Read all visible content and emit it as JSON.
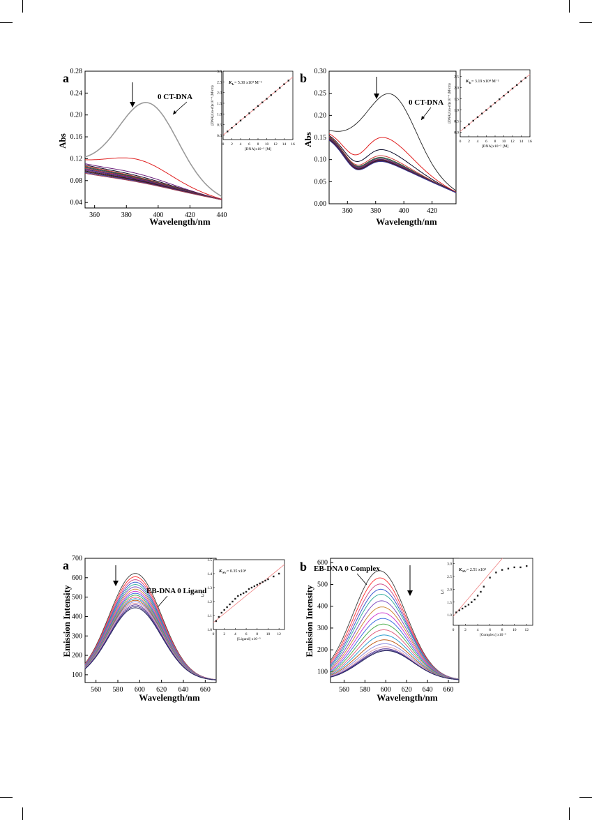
{
  "panels": {
    "a_abs": {
      "letter": "a",
      "xlabel": "Wavelength/nm",
      "ylabel": "Abs",
      "xticks": [
        "360",
        "380",
        "400",
        "420",
        "440"
      ],
      "yticks": [
        "0.04",
        "0.08",
        "0.12",
        "0.16",
        "0.20",
        "0.24",
        "0.28"
      ],
      "annotation": "0 CT-DNA",
      "inset": {
        "kb": "K",
        "kb_sub": "b",
        "kb_value": " = 5.30 x10⁴ M⁻¹",
        "xlabel": "[DNA]x10⁻⁵ [M]",
        "ylabel": "[DNA]/(εa-εf)x10⁻⁹ (M²cm)",
        "xticks": [
          "0",
          "2",
          "4",
          "6",
          "8",
          "10",
          "12",
          "14",
          "16"
        ],
        "yticks": [
          "0.0",
          "0.5",
          "1.0",
          "1.5",
          "2.0",
          "2.5",
          "3.0"
        ]
      }
    },
    "b_abs": {
      "letter": "b",
      "xlabel": "Wavelength/nm",
      "ylabel": "Abs",
      "xticks": [
        "360",
        "380",
        "400",
        "420"
      ],
      "yticks": [
        "0.00",
        "0.05",
        "0.10",
        "0.15",
        "0.20",
        "0.25",
        "0.30"
      ],
      "annotation": "0 CT-DNA",
      "inset": {
        "kb": "K",
        "kb_sub": "b",
        "kb_value": " = 3.19 x10⁴ M⁻¹",
        "xlabel": "[DNA]x10⁻⁵ [M]",
        "ylabel": "[DNA]/(εa-εf)x10⁻⁹ (M²cm)",
        "xticks": [
          "0",
          "2",
          "4",
          "6",
          "8",
          "10",
          "12",
          "14",
          "16"
        ],
        "yticks": [
          "0.0",
          "0.5",
          "1.0",
          "1.5",
          "2.0",
          "2.5"
        ]
      }
    },
    "a_em": {
      "letter": "a",
      "xlabel": "Wavelength/nm",
      "ylabel": "Emission Intensity",
      "xticks": [
        "560",
        "580",
        "600",
        "620",
        "640",
        "660"
      ],
      "yticks": [
        "100",
        "200",
        "300",
        "400",
        "500",
        "600",
        "700"
      ],
      "annotation": "EB-DNA   0 Ligand",
      "inset": {
        "kb": "K",
        "kb_sub": "SV",
        "kb_value": " = 0.35 x10⁴",
        "xlabel": "[Ligand] x10⁻⁵",
        "ylabel": "I₀/I",
        "xticks": [
          "0",
          "2",
          "4",
          "6",
          "8",
          "10",
          "12"
        ],
        "yticks": [
          "1.0",
          "1.1",
          "1.2",
          "1.3",
          "1.4",
          "1.5"
        ]
      }
    },
    "b_em": {
      "letter": "b",
      "xlabel": "Wavelength/nm",
      "ylabel": "Emission Intensity",
      "xticks": [
        "560",
        "580",
        "600",
        "620",
        "640",
        "660"
      ],
      "yticks": [
        "100",
        "200",
        "300",
        "400",
        "500",
        "600"
      ],
      "annotation": "EB-DNA   0 Complex",
      "inset": {
        "kb": "K",
        "kb_sub": "SV",
        "kb_value": " = 2.51 x10⁴",
        "xlabel": "[Complex] x10⁻⁵",
        "ylabel": "I₀/I",
        "xticks": [
          "0",
          "2",
          "4",
          "6",
          "8",
          "10",
          "12"
        ],
        "yticks": [
          "1.0",
          "1.5",
          "2.0",
          "2.5",
          "3.0"
        ]
      }
    }
  },
  "colors": {
    "axis": "#000000",
    "fit_line": "#f08080",
    "points": "#222222",
    "curve_first_abs": "#333333",
    "curve_first_a_abs": "#9a9a9a",
    "curve_second": "#e02020"
  },
  "chart_data": [
    {
      "type": "line",
      "panel": "a_abs",
      "xlim": [
        354,
        440
      ],
      "ylim": [
        0.03,
        0.28
      ],
      "peak_wavelength": 394,
      "series_peaks_abs": [
        0.222,
        0.118,
        0.092,
        0.088,
        0.086,
        0.085,
        0.084,
        0.083,
        0.082,
        0.081,
        0.08,
        0.079,
        0.078,
        0.077
      ],
      "end_abs_440": 0.045
    },
    {
      "type": "scatter",
      "panel": "a_abs_inset",
      "xlim": [
        0,
        16
      ],
      "ylim": [
        -0.2,
        3.0
      ],
      "x": [
        1,
        2,
        3,
        4,
        5,
        6,
        7,
        8,
        9,
        10,
        11,
        12,
        13,
        14,
        15
      ],
      "y": [
        0.18,
        0.35,
        0.52,
        0.69,
        0.86,
        1.03,
        1.2,
        1.37,
        1.54,
        1.71,
        1.88,
        2.05,
        2.22,
        2.39,
        2.56
      ],
      "fit": {
        "slope": 0.17,
        "intercept": 0.01
      }
    },
    {
      "type": "line",
      "panel": "b_abs",
      "xlim": [
        347,
        437
      ],
      "ylim": [
        0.0,
        0.3
      ],
      "series_peaks_abs": [
        0.247,
        0.15,
        0.122,
        0.108,
        0.104,
        0.102,
        0.1,
        0.099,
        0.098,
        0.097,
        0.096,
        0.095
      ],
      "start_abs_347": [
        0.162,
        0.158,
        0.156,
        0.155,
        0.154,
        0.153,
        0.152,
        0.151,
        0.15,
        0.149,
        0.148,
        0.147
      ],
      "end_abs_437": 0.025
    },
    {
      "type": "scatter",
      "panel": "b_abs_inset",
      "xlim": [
        0,
        16
      ],
      "ylim": [
        -0.2,
        2.8
      ],
      "x": [
        1,
        2,
        3,
        4,
        5,
        6,
        7,
        8,
        9,
        10,
        11,
        12,
        13,
        14,
        15
      ],
      "y": [
        0.2,
        0.36,
        0.52,
        0.68,
        0.84,
        1.0,
        1.16,
        1.32,
        1.48,
        1.64,
        1.8,
        1.96,
        2.12,
        2.28,
        2.44
      ],
      "fit": {
        "slope": 0.16,
        "intercept": 0.04
      }
    },
    {
      "type": "line",
      "panel": "a_em",
      "xlim": [
        550,
        670
      ],
      "ylim": [
        60,
        700
      ],
      "series_peaks": [
        622,
        605,
        590,
        577,
        565,
        553,
        541,
        530,
        520,
        510,
        500,
        492,
        484,
        476,
        468,
        460,
        452,
        445
      ],
      "peak_wavelength": 596
    },
    {
      "type": "scatter",
      "panel": "a_em_inset",
      "xlim": [
        0,
        13
      ],
      "ylim": [
        1.0,
        1.5
      ],
      "x": [
        0.5,
        1,
        1.5,
        2,
        2.5,
        3,
        3.5,
        4,
        4.5,
        5,
        5.5,
        6,
        6.5,
        7,
        7.5,
        8,
        8.5,
        9,
        9.5,
        10,
        11,
        12
      ],
      "y": [
        1.06,
        1.09,
        1.12,
        1.14,
        1.16,
        1.18,
        1.2,
        1.22,
        1.24,
        1.25,
        1.26,
        1.27,
        1.29,
        1.3,
        1.31,
        1.32,
        1.33,
        1.34,
        1.35,
        1.36,
        1.38,
        1.4
      ],
      "fit": {
        "slope": 0.032,
        "intercept": 1.05
      }
    },
    {
      "type": "line",
      "panel": "b_em",
      "xlim": [
        547,
        670
      ],
      "ylim": [
        50,
        620
      ],
      "series_peaks": [
        563,
        530,
        502,
        478,
        455,
        425,
        397,
        370,
        344,
        318,
        292,
        268,
        246,
        228,
        214,
        205,
        200,
        196
      ],
      "peak_wavelength": 594
    },
    {
      "type": "scatter",
      "panel": "b_em_inset",
      "xlim": [
        0,
        13
      ],
      "ylim": [
        0.6,
        3.2
      ],
      "x": [
        0.5,
        1,
        1.5,
        2,
        2.5,
        3,
        3.5,
        4,
        4.5,
        5,
        6,
        7,
        8,
        9,
        10,
        11,
        12
      ],
      "y": [
        1.1,
        1.18,
        1.25,
        1.33,
        1.4,
        1.5,
        1.6,
        1.75,
        1.9,
        2.1,
        2.45,
        2.65,
        2.75,
        2.8,
        2.85,
        2.85,
        2.9
      ],
      "fit": {
        "slope": 0.28,
        "intercept": 0.95
      }
    }
  ]
}
